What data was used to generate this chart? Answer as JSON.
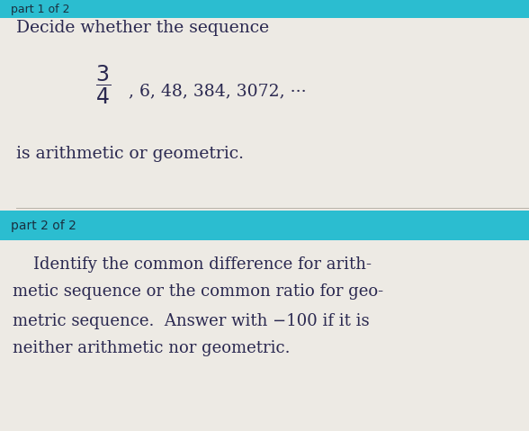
{
  "bg_color": "#c8c4bc",
  "white_bg": "#edeae4",
  "teal_color": "#2bbdd0",
  "body_text_color": "#2a2850",
  "header_text_color": "#1a3040",
  "top_bar_label": "part 1 of 2",
  "part2_bar_label": "part 2 of 2",
  "line1": "Decide whether the sequence",
  "line3": "is arithmetic or geometric.",
  "part2_line1": "    Identify the common difference for arith-",
  "part2_line2": "metic sequence or the common ratio for geo-",
  "part2_line3": "metric sequence.  Answer with −100 if it is",
  "part2_line4": "neither arithmetic nor geometric.",
  "sequence_after_frac": ", 6, 48, 384, 3072,",
  "dots": " ···",
  "fig_width": 5.88,
  "fig_height": 4.79,
  "dpi": 100
}
